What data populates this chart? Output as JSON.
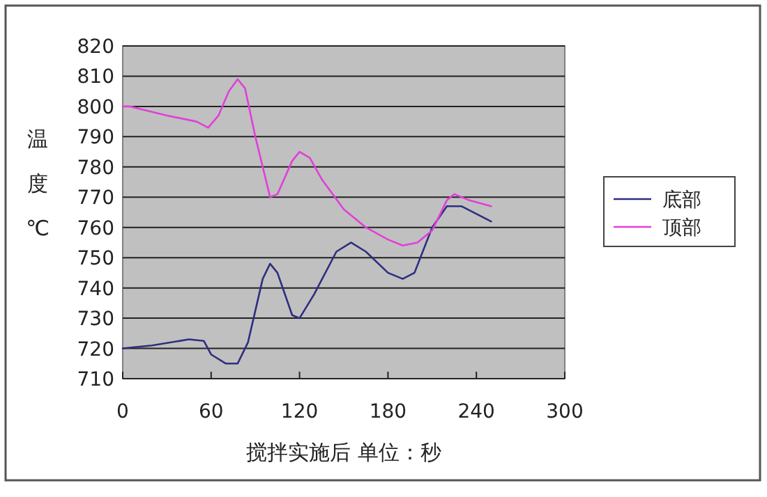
{
  "chart_data": {
    "type": "line",
    "ylabel": "温度℃",
    "xlabel": "搅拌实施后 单位：秒",
    "xlim": [
      0,
      300
    ],
    "xticks": [
      0,
      60,
      120,
      180,
      240,
      300
    ],
    "ylim": [
      710,
      820
    ],
    "yticks": [
      710,
      720,
      730,
      740,
      750,
      760,
      770,
      780,
      790,
      800,
      810,
      820
    ],
    "grid": "y",
    "legend": "right",
    "marker": "none",
    "line_style": "solid",
    "series": [
      {
        "name": "底部",
        "color": "#2e2e80",
        "x": [
          0,
          20,
          45,
          55,
          60,
          70,
          78,
          85,
          95,
          100,
          105,
          115,
          120,
          130,
          145,
          155,
          165,
          180,
          190,
          198,
          210,
          220,
          230,
          250
        ],
        "values": [
          720,
          721,
          723,
          722.5,
          718,
          715,
          715,
          722,
          743,
          748,
          745,
          731,
          730,
          738,
          752,
          755,
          752,
          745,
          743,
          745,
          760,
          767,
          767,
          762
        ]
      },
      {
        "name": "顶部",
        "color": "#e040d8",
        "x": [
          0,
          5,
          30,
          50,
          58,
          65,
          72,
          78,
          83,
          90,
          100,
          105,
          115,
          120,
          127,
          135,
          150,
          165,
          180,
          190,
          200,
          210,
          220,
          225,
          235,
          250
        ],
        "values": [
          800,
          800,
          797,
          795,
          793,
          797,
          805,
          809,
          806,
          790,
          770,
          771,
          782,
          785,
          783,
          776,
          766,
          760,
          756,
          754,
          755,
          759,
          769,
          771,
          769,
          767
        ]
      }
    ]
  }
}
